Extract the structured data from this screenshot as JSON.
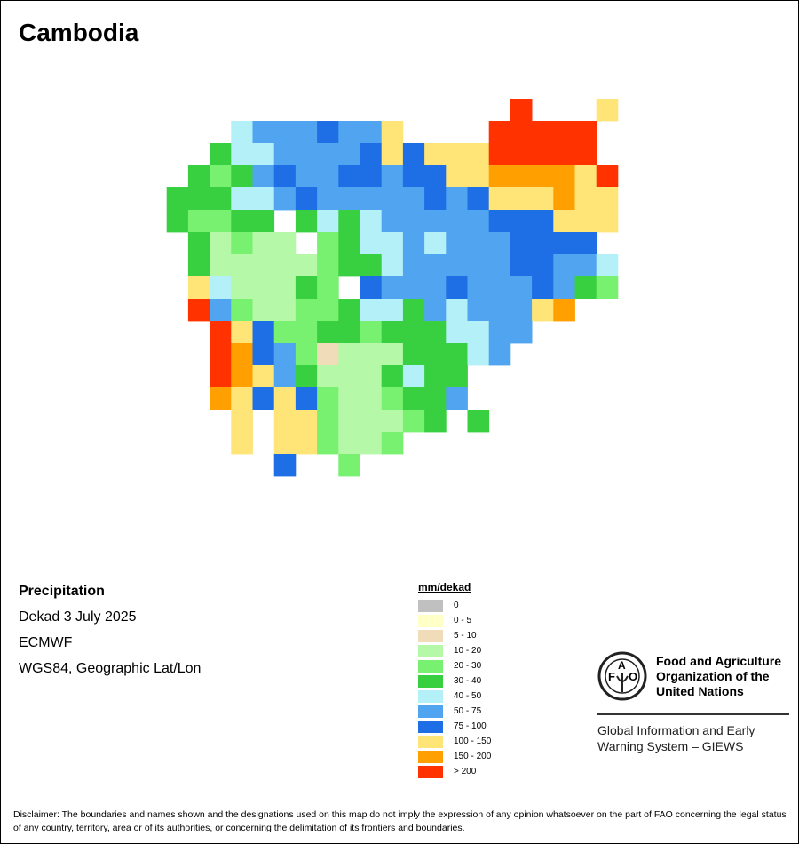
{
  "title": "Cambodia",
  "info": {
    "variable": "Precipitation",
    "period": "Dekad 3 July 2025",
    "source": "ECMWF",
    "projection": "WGS84, Geographic Lat/Lon"
  },
  "legend": {
    "title": "mm/dekad",
    "classes": [
      {
        "code": "g",
        "label": "0",
        "color": "#c0c0c0"
      },
      {
        "code": "y",
        "label": "0 - 5",
        "color": "#ffffc8"
      },
      {
        "code": "t",
        "label": "5 - 10",
        "color": "#f0dcb8"
      },
      {
        "code": "a",
        "label": "10 - 20",
        "color": "#b4f8a8"
      },
      {
        "code": "b",
        "label": "20 - 30",
        "color": "#78f070"
      },
      {
        "code": "c",
        "label": "30 - 40",
        "color": "#38d040"
      },
      {
        "code": "d",
        "label": "40 - 50",
        "color": "#b4f0f8"
      },
      {
        "code": "e",
        "label": "50 - 75",
        "color": "#50a4f0"
      },
      {
        "code": "f",
        "label": "75 - 100",
        "color": "#1e6ee6"
      },
      {
        "code": "h",
        "label": "100 - 150",
        "color": "#ffe478"
      },
      {
        "code": "o",
        "label": "150 - 200",
        "color": "#ffa000"
      },
      {
        "code": "r",
        "label": "> 200",
        "color": "#ff3200"
      }
    ]
  },
  "grid": [
    "................r...h",
    "...deeefeeh....rrrrr.",
    "..cddeeeefhfhhhrrrrr.",
    ".cbcefeeffeffhhoooohr",
    "cccddefeeeeefefhhhohh",
    "cbbcc.cdcdeeeeefffhhh",
    ".cabaa.bcddedeeeffff.",
    ".caaaaabccdeeeeeffeed",
    ".hdaaacb.feeefeeefecb",
    ".rebaabbcddcedeeeho..",
    "..rhfbbccbcccddee....",
    "..rofebtaaacccde.....",
    "..rohecaaacdcc.......",
    "..ohfhfbaabcce.......",
    "...h.hhbaaabc.c......",
    "...h.hhbaab..........",
    ".....f..b............"
  ],
  "organization": {
    "name_lines": [
      "Food and Agriculture",
      "Organization of the",
      "United Nations"
    ],
    "logo_text": "FAO FIAT PANIS",
    "system_lines": [
      "Global Information and Early",
      "Warning System – GIEWS"
    ]
  },
  "disclaimer": "Disclaimer: The boundaries and names shown and the designations used on this map do not imply the expression of any opinion whatsoever on the part of FAO concerning the legal status of any country, territory, area or of its authorities, or concerning the delimitation of its frontiers and boundaries."
}
